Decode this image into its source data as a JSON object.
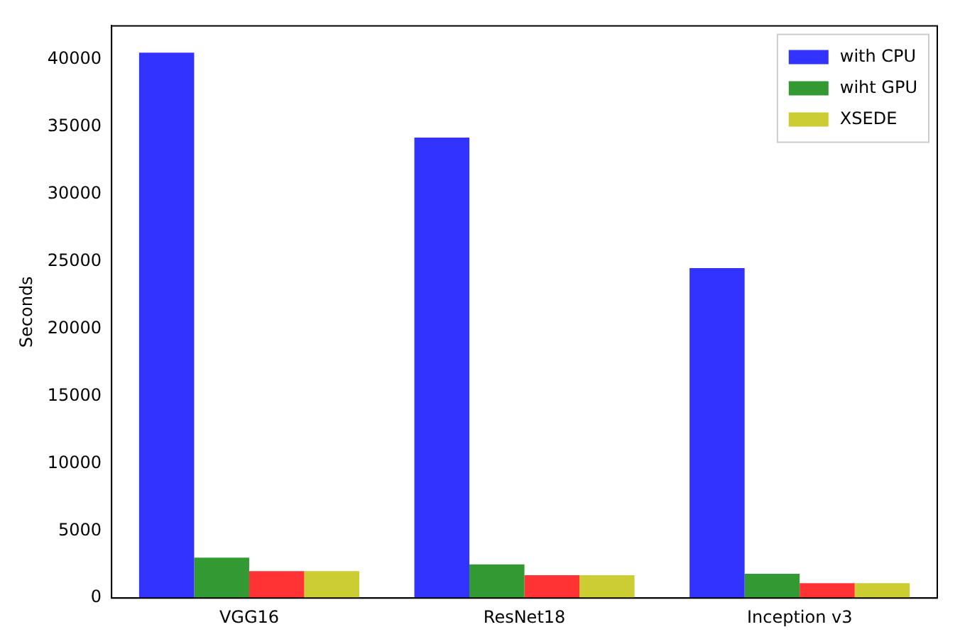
{
  "chart_data": {
    "type": "bar",
    "ylabel": "Seconds",
    "categories": [
      "VGG16",
      "ResNet18",
      "Inception v3"
    ],
    "series": [
      {
        "name": "with CPU",
        "color": "#3333ff",
        "values": [
          40500,
          34200,
          24500
        ]
      },
      {
        "name": "wiht GPU",
        "color": "#339933",
        "values": [
          3000,
          2500,
          1800
        ]
      },
      {
        "color": "#ff3333",
        "values": [
          2000,
          1700,
          1100
        ]
      },
      {
        "name": "XSEDE",
        "color": "#cccc33",
        "values": [
          2000,
          1700,
          1100
        ]
      }
    ],
    "ylim": [
      0,
      42500
    ],
    "yticks": [
      0,
      5000,
      10000,
      15000,
      20000,
      25000,
      30000,
      35000,
      40000
    ],
    "grid": false,
    "legend": "top right"
  }
}
